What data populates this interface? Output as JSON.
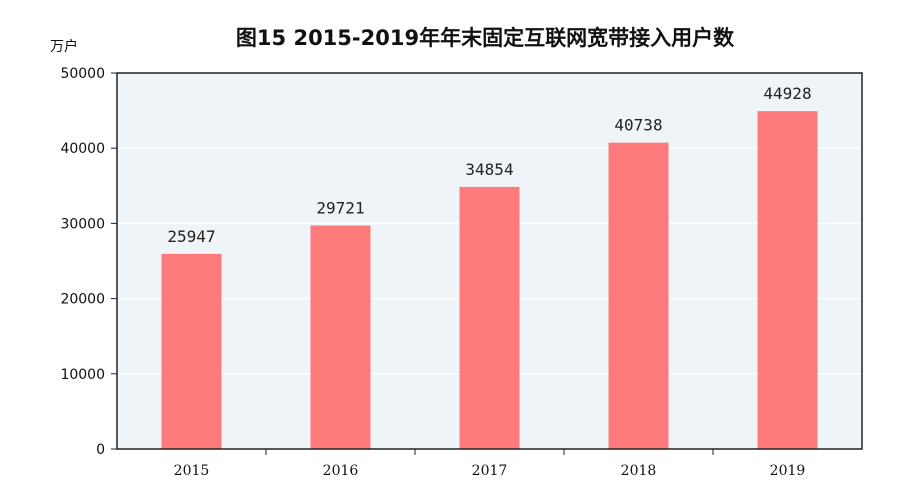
{
  "chart_data": {
    "type": "bar",
    "title": "图15  2015-2019年年末固定互联网宽带接入用户数",
    "ylabel": "万户",
    "xlabel": "",
    "categories": [
      "2015",
      "2016",
      "2017",
      "2018",
      "2019"
    ],
    "values": [
      25947,
      29721,
      34854,
      40738,
      44928
    ],
    "ylim": [
      0,
      50000
    ],
    "yticks": [
      "0",
      "10000",
      "20000",
      "30000",
      "40000",
      "50000"
    ],
    "grid": true,
    "legend": "none",
    "colors": {
      "bar": "#FF7B7B",
      "plot_background": "#EEF4F8",
      "grid": "#FFFFFF",
      "axis": "#222222"
    }
  }
}
